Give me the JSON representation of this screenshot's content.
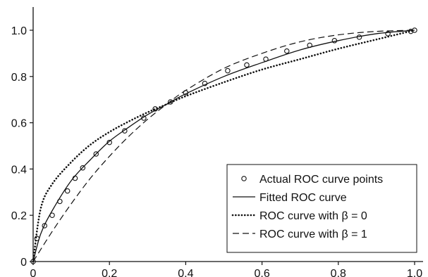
{
  "chart_data": {
    "type": "line",
    "title": "",
    "xlabel": "",
    "ylabel": "",
    "xlim": [
      0,
      1.0
    ],
    "ylim": [
      0,
      1.0
    ],
    "x_ticks": [
      "0",
      "0.2",
      "0.4",
      "0.6",
      "0.8",
      "1.0"
    ],
    "y_ticks": [
      "0",
      "0.2",
      "0.4",
      "0.6",
      "0.8",
      "1.0"
    ],
    "grid": false,
    "legend_position": "bottom-right",
    "series": [
      {
        "name": "Actual ROC curve points",
        "style": "circles",
        "x": [
          0.0,
          0.01,
          0.03,
          0.05,
          0.07,
          0.09,
          0.11,
          0.13,
          0.165,
          0.2,
          0.24,
          0.29,
          0.32,
          0.36,
          0.4,
          0.45,
          0.51,
          0.56,
          0.61,
          0.665,
          0.725,
          0.79,
          0.855,
          0.93,
          0.99,
          1.0
        ],
        "y": [
          0.0,
          0.1,
          0.155,
          0.2,
          0.26,
          0.305,
          0.36,
          0.405,
          0.465,
          0.515,
          0.565,
          0.62,
          0.66,
          0.69,
          0.73,
          0.77,
          0.825,
          0.85,
          0.875,
          0.91,
          0.935,
          0.955,
          0.97,
          0.985,
          0.995,
          1.0
        ]
      },
      {
        "name": "Fitted ROC curve",
        "style": "solid",
        "x": [
          0.0,
          0.02,
          0.05,
          0.1,
          0.15,
          0.2,
          0.25,
          0.3,
          0.35,
          0.4,
          0.5,
          0.6,
          0.7,
          0.8,
          0.9,
          1.0
        ],
        "y": [
          0.0,
          0.12,
          0.22,
          0.35,
          0.44,
          0.52,
          0.58,
          0.635,
          0.68,
          0.725,
          0.8,
          0.86,
          0.915,
          0.955,
          0.985,
          1.0
        ]
      },
      {
        "name": "ROC curve with β = 0",
        "style": "dotted",
        "x": [
          0.0,
          0.02,
          0.05,
          0.1,
          0.15,
          0.2,
          0.25,
          0.3,
          0.35,
          0.4,
          0.5,
          0.6,
          0.7,
          0.8,
          0.9,
          1.0
        ],
        "y": [
          0.0,
          0.23,
          0.335,
          0.43,
          0.505,
          0.56,
          0.605,
          0.645,
          0.68,
          0.715,
          0.775,
          0.83,
          0.875,
          0.92,
          0.96,
          1.0
        ]
      },
      {
        "name": "ROC curve with β = 1",
        "style": "dashed",
        "x": [
          0.0,
          0.05,
          0.1,
          0.15,
          0.2,
          0.25,
          0.3,
          0.35,
          0.4,
          0.5,
          0.6,
          0.7,
          0.8,
          0.9,
          1.0
        ],
        "y": [
          0.0,
          0.13,
          0.25,
          0.36,
          0.455,
          0.54,
          0.615,
          0.68,
          0.74,
          0.835,
          0.9,
          0.95,
          0.98,
          0.995,
          1.0
        ]
      }
    ]
  }
}
